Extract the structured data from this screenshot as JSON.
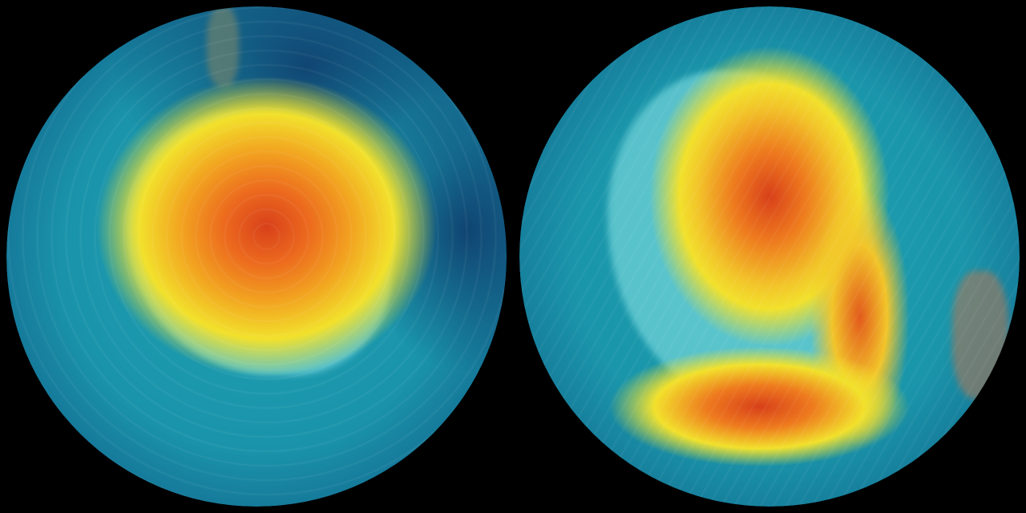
{
  "colors": {
    "background": "#000000",
    "ocean_deep": "#0e3d6b",
    "ocean": "#1a8fa8",
    "teal": "#2bb5b8",
    "cyan_land": "#5fe0e0",
    "yellow": "#f2e12c",
    "orange": "#f08a1c",
    "red": "#d8401a"
  }
}
